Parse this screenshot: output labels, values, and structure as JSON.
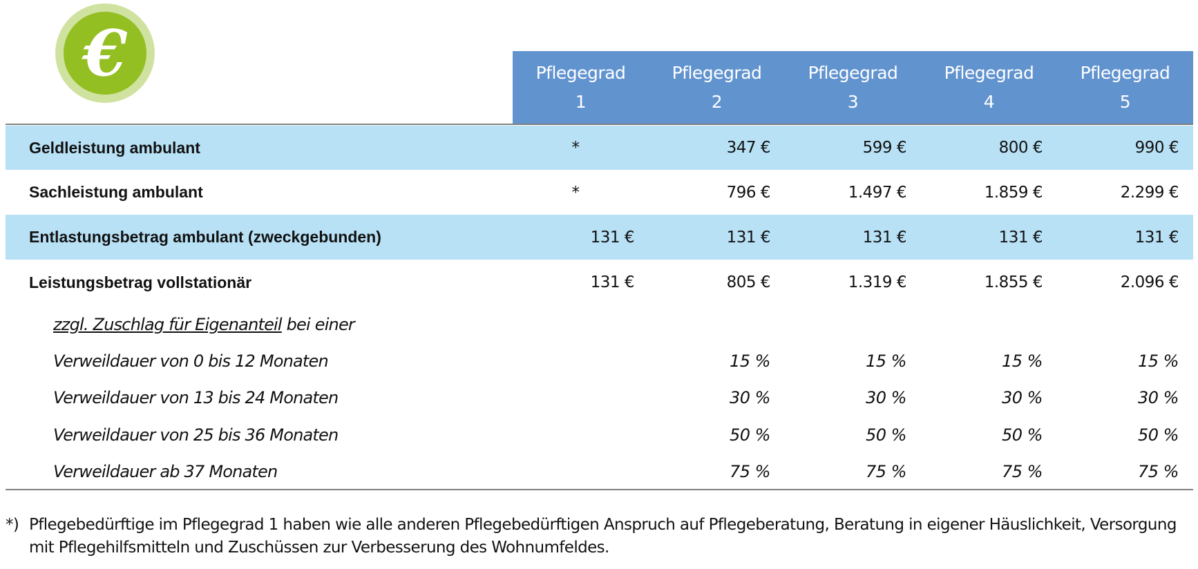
{
  "logo": {
    "icon": "euro-coin-icon",
    "glyph": "€",
    "colors": {
      "outer": "#d0e2a0",
      "inner": "#93bf22"
    }
  },
  "colors": {
    "header_bg": "#6193cf",
    "row_highlight": "#b8e1f6"
  },
  "header": {
    "columns": [
      {
        "title": "Pflegegrad",
        "number": "1"
      },
      {
        "title": "Pflegegrad",
        "number": "2"
      },
      {
        "title": "Pflegegrad",
        "number": "3"
      },
      {
        "title": "Pflegegrad",
        "number": "4"
      },
      {
        "title": "Pflegegrad",
        "number": "5"
      }
    ]
  },
  "rows": [
    {
      "label": "Geldleistung ambulant",
      "values": [
        "*",
        "347 €",
        "599 €",
        "800 €",
        "990 €"
      ]
    },
    {
      "label": "Sachleistung ambulant",
      "values": [
        "*",
        "796 €",
        "1.497 €",
        "1.859 €",
        "2.299 €"
      ]
    },
    {
      "label": "Entlastungsbetrag ambulant (zweckgebunden)",
      "values": [
        "131 €",
        "131 €",
        "131 €",
        "131 €",
        "131 €"
      ]
    },
    {
      "label": "Leistungsbetrag vollstationär",
      "values": [
        "131 €",
        "805 €",
        "1.319 €",
        "1.855 €",
        "2.096 €"
      ]
    }
  ],
  "surcharge": {
    "intro_underlined": "zzgl. Zuschlag für Eigenanteil",
    "intro_rest": " bei einer",
    "rows": [
      {
        "label": "Verweildauer von 0 bis 12 Monaten",
        "values": [
          "15 %",
          "15 %",
          "15 %",
          "15 %"
        ]
      },
      {
        "label": "Verweildauer von 13 bis 24 Monaten",
        "values": [
          "30 %",
          "30 %",
          "30 %",
          "30 %"
        ]
      },
      {
        "label": "Verweildauer von 25 bis 36 Monaten",
        "values": [
          "50 %",
          "50 %",
          "50 %",
          "50 %"
        ]
      },
      {
        "label": "Verweildauer ab 37 Monaten",
        "values": [
          "75 %",
          "75 %",
          "75 %",
          "75 %"
        ]
      }
    ]
  },
  "footnote": {
    "marker": "*)",
    "text": "Pflegebedürftige im Pflegegrad 1 haben wie alle anderen Pflegebedürftigen Anspruch auf Pflegeberatung, Beratung in eigener Häuslichkeit, Versorgung mit Pflegehilfsmitteln und Zuschüssen zur Verbesserung des Wohnumfeldes."
  }
}
